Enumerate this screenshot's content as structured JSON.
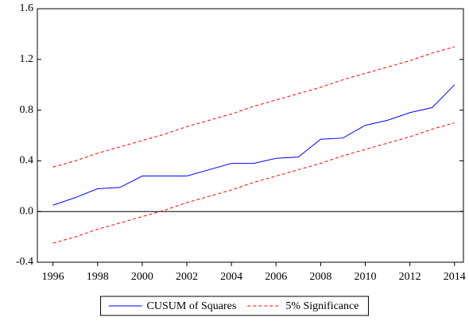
{
  "chart_data": {
    "type": "line",
    "x": [
      1996,
      1997,
      1998,
      1999,
      2000,
      2001,
      2002,
      2003,
      2004,
      2005,
      2006,
      2007,
      2008,
      2009,
      2010,
      2011,
      2012,
      2013,
      2014
    ],
    "series": [
      {
        "name": "CUSUM of Squares",
        "color": "#0000ff",
        "dashed": false,
        "values": [
          0.05,
          0.11,
          0.18,
          0.19,
          0.28,
          0.28,
          0.28,
          0.33,
          0.38,
          0.38,
          0.42,
          0.43,
          0.57,
          0.58,
          0.68,
          0.72,
          0.78,
          0.82,
          1.0
        ]
      },
      {
        "name": "5% Significance",
        "color": "#ff0000",
        "dashed": true,
        "values": [
          0.35,
          0.4,
          0.46,
          0.51,
          0.56,
          0.61,
          0.67,
          0.72,
          0.77,
          0.83,
          0.88,
          0.93,
          0.98,
          1.04,
          1.09,
          1.14,
          1.19,
          1.25,
          1.3
        ]
      },
      {
        "name": null,
        "color": "#ff0000",
        "dashed": true,
        "values": [
          -0.25,
          -0.2,
          -0.14,
          -0.09,
          -0.04,
          0.01,
          0.07,
          0.12,
          0.17,
          0.23,
          0.28,
          0.33,
          0.38,
          0.44,
          0.49,
          0.54,
          0.59,
          0.65,
          0.7
        ]
      }
    ],
    "xlim": [
      1995.3,
      2014.4
    ],
    "xticks": [
      1996,
      1998,
      2000,
      2002,
      2004,
      2006,
      2008,
      2010,
      2012,
      2014
    ],
    "ylim": [
      -0.4,
      1.6
    ],
    "yticks": [
      -0.4,
      {
        "value": 0,
        "label": "0.0"
      },
      0.4,
      0.8,
      1.2,
      1.6
    ],
    "hline": 0,
    "legend": "bottom"
  }
}
